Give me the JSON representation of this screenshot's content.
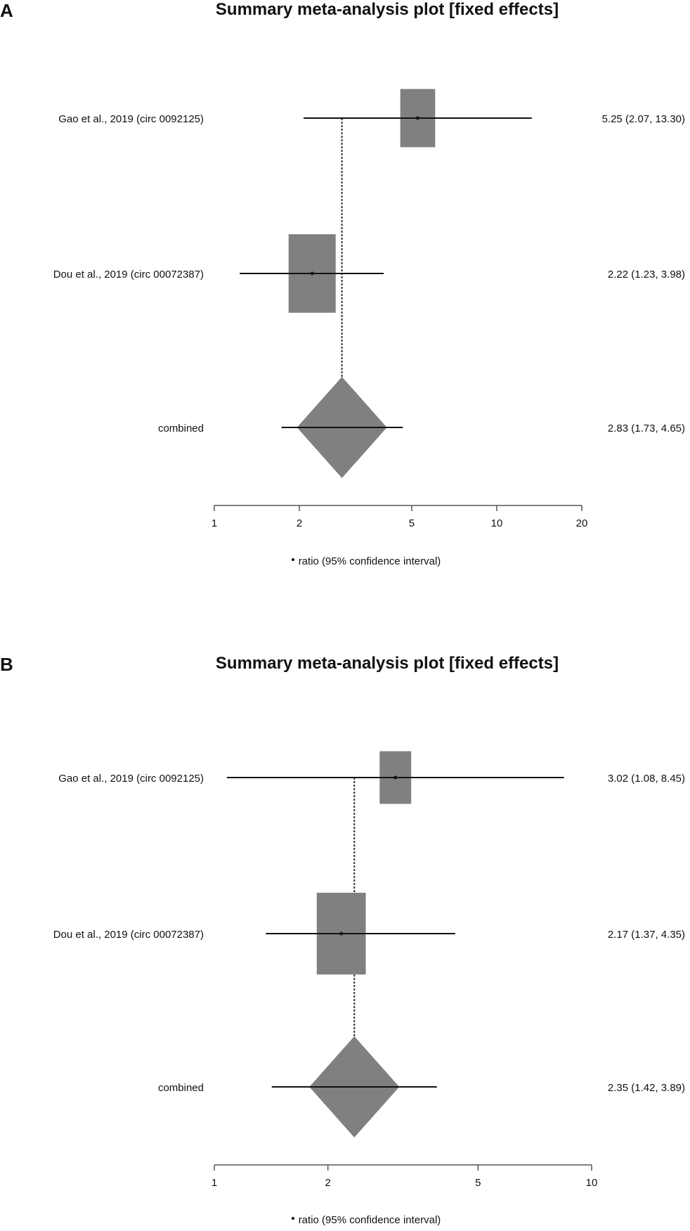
{
  "chart_data": [
    {
      "type": "forest",
      "panel_label": "A",
      "title": "Summary meta-analysis plot [fixed effects]",
      "x_scale": "log",
      "xlim": [
        1,
        20
      ],
      "x_ticks": [
        1,
        2,
        5,
        10,
        20
      ],
      "legend": "ratio (95% confidence interval)",
      "studies": [
        {
          "name": "Gao et al., 2019 (circ 0092125)",
          "estimate": 5.25,
          "lower": 2.07,
          "upper": 13.3,
          "ci_text": "5.25 (2.07, 13.30)",
          "weight": 0.3
        },
        {
          "name": "Dou et al., 2019 (circ 00072387)",
          "estimate": 2.22,
          "lower": 1.23,
          "upper": 3.98,
          "ci_text": "2.22 (1.23, 3.98)",
          "weight": 0.7
        }
      ],
      "combined": {
        "name": "combined",
        "estimate": 2.83,
        "lower": 1.73,
        "upper": 4.65,
        "ci_text": "2.83 (1.73, 4.65)"
      },
      "colors": {
        "box": "#808080",
        "line": "#111111"
      }
    },
    {
      "type": "forest",
      "panel_label": "B",
      "title": "Summary meta-analysis plot [fixed effects]",
      "x_scale": "log",
      "xlim": [
        1,
        10
      ],
      "x_ticks": [
        1,
        2,
        5,
        10
      ],
      "legend": "ratio (95% confidence interval)",
      "studies": [
        {
          "name": "Gao et al., 2019 (circ 0092125)",
          "estimate": 3.02,
          "lower": 1.08,
          "upper": 8.45,
          "ci_text": "3.02 (1.08, 8.45)",
          "weight": 0.22
        },
        {
          "name": "Dou et al., 2019 (circ 00072387)",
          "estimate": 2.17,
          "lower": 1.37,
          "upper": 4.35,
          "ci_text": "2.17 (1.37, 4.35)",
          "weight": 0.78
        }
      ],
      "combined": {
        "name": "combined",
        "estimate": 2.35,
        "lower": 1.42,
        "upper": 3.89,
        "ci_text": "2.35 (1.42, 3.89)"
      },
      "colors": {
        "box": "#808080",
        "line": "#111111"
      }
    }
  ]
}
